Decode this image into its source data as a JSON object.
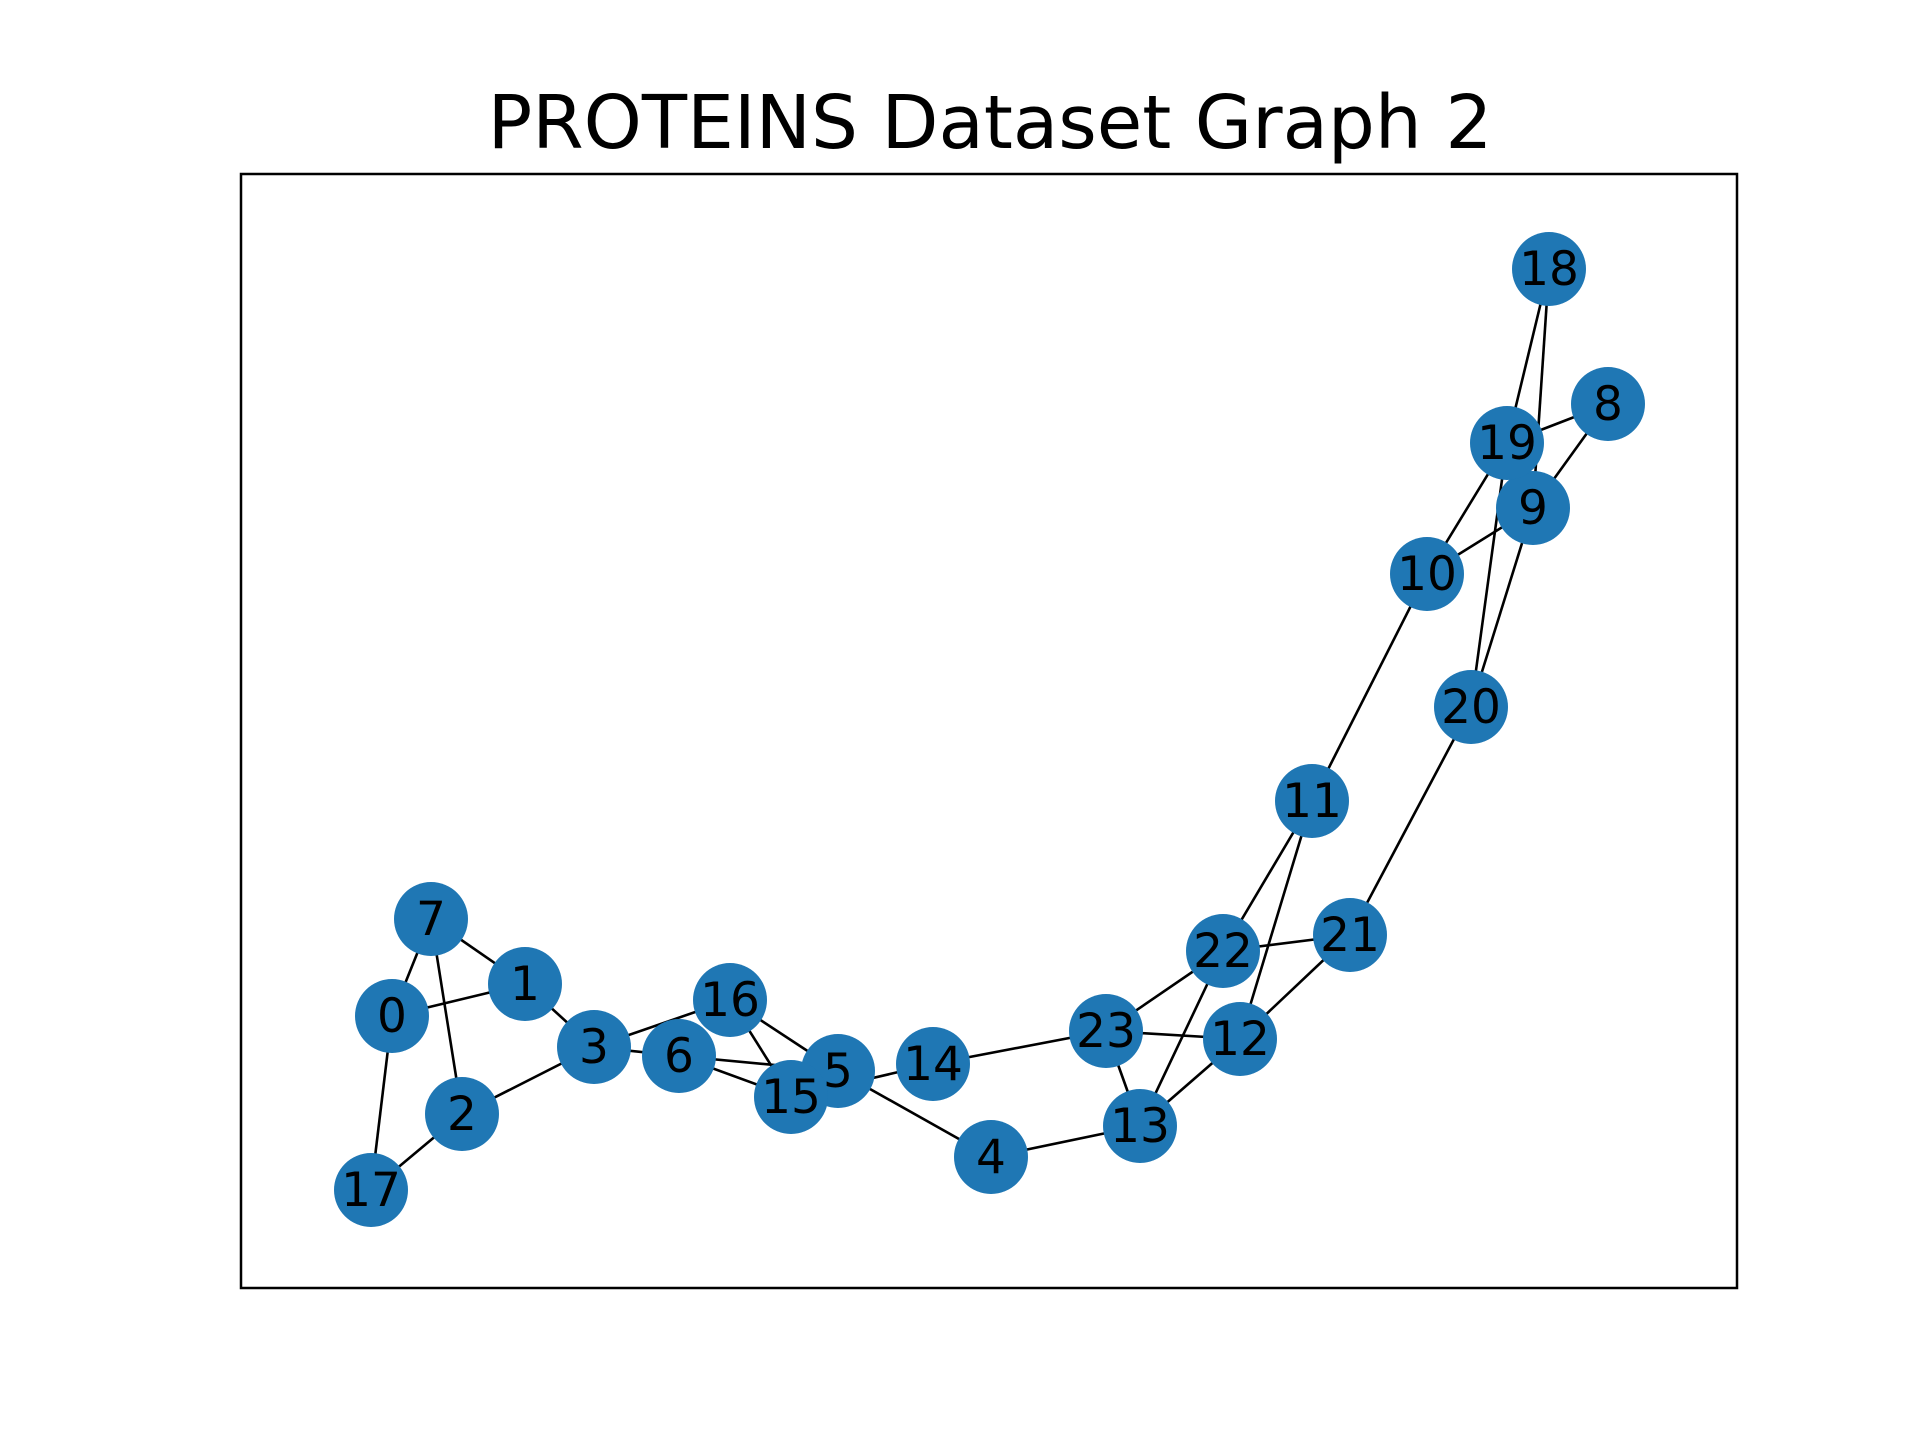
{
  "title": "PROTEINS Dataset Graph 2",
  "colors": {
    "node_fill": "#1f77b4",
    "edge": "#000000",
    "label": "#000000",
    "frame": "#000000"
  },
  "graph": {
    "nodes": [
      {
        "id": "0",
        "label": "0"
      },
      {
        "id": "1",
        "label": "1"
      },
      {
        "id": "2",
        "label": "2"
      },
      {
        "id": "3",
        "label": "3"
      },
      {
        "id": "4",
        "label": "4"
      },
      {
        "id": "5",
        "label": "5"
      },
      {
        "id": "6",
        "label": "6"
      },
      {
        "id": "7",
        "label": "7"
      },
      {
        "id": "8",
        "label": "8"
      },
      {
        "id": "9",
        "label": "9"
      },
      {
        "id": "10",
        "label": "10"
      },
      {
        "id": "11",
        "label": "11"
      },
      {
        "id": "12",
        "label": "12"
      },
      {
        "id": "13",
        "label": "13"
      },
      {
        "id": "14",
        "label": "14"
      },
      {
        "id": "15",
        "label": "15"
      },
      {
        "id": "16",
        "label": "16"
      },
      {
        "id": "17",
        "label": "17"
      },
      {
        "id": "18",
        "label": "18"
      },
      {
        "id": "19",
        "label": "19"
      },
      {
        "id": "20",
        "label": "20"
      },
      {
        "id": "21",
        "label": "21"
      },
      {
        "id": "22",
        "label": "22"
      },
      {
        "id": "23",
        "label": "23"
      }
    ],
    "edges": [
      [
        "0",
        "7"
      ],
      [
        "0",
        "1"
      ],
      [
        "0",
        "17"
      ],
      [
        "7",
        "1"
      ],
      [
        "7",
        "2"
      ],
      [
        "1",
        "3"
      ],
      [
        "2",
        "17"
      ],
      [
        "2",
        "3"
      ],
      [
        "3",
        "6"
      ],
      [
        "3",
        "16"
      ],
      [
        "6",
        "5"
      ],
      [
        "6",
        "15"
      ],
      [
        "16",
        "15"
      ],
      [
        "16",
        "5"
      ],
      [
        "15",
        "14"
      ],
      [
        "5",
        "4"
      ],
      [
        "14",
        "23"
      ],
      [
        "4",
        "13"
      ],
      [
        "23",
        "13"
      ],
      [
        "23",
        "12"
      ],
      [
        "23",
        "22"
      ],
      [
        "13",
        "22"
      ],
      [
        "13",
        "12"
      ],
      [
        "12",
        "11"
      ],
      [
        "12",
        "21"
      ],
      [
        "22",
        "11"
      ],
      [
        "22",
        "21"
      ],
      [
        "21",
        "20"
      ],
      [
        "11",
        "10"
      ],
      [
        "20",
        "9"
      ],
      [
        "20",
        "19"
      ],
      [
        "10",
        "9"
      ],
      [
        "10",
        "19"
      ],
      [
        "9",
        "8"
      ],
      [
        "9",
        "18"
      ],
      [
        "19",
        "8"
      ],
      [
        "19",
        "18"
      ]
    ]
  }
}
